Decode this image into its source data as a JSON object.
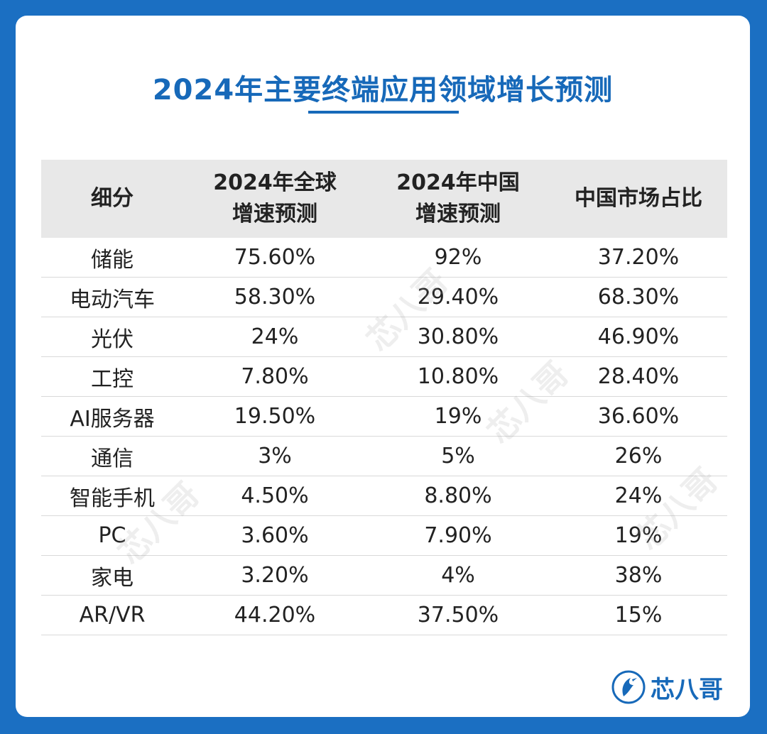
{
  "title": "2024年主要终端应用领域增长预测",
  "table": {
    "headers": [
      [
        "细分"
      ],
      [
        "2024年全球",
        "增速预测"
      ],
      [
        "2024年中国",
        "增速预测"
      ],
      [
        "中国市场占比"
      ]
    ],
    "rows": [
      [
        "储能",
        "75.60%",
        "92%",
        "37.20%"
      ],
      [
        "电动汽车",
        "58.30%",
        "29.40%",
        "68.30%"
      ],
      [
        "光伏",
        "24%",
        "30.80%",
        "46.90%"
      ],
      [
        "工控",
        "7.80%",
        "10.80%",
        "28.40%"
      ],
      [
        "AI服务器",
        "19.50%",
        "19%",
        "36.60%"
      ],
      [
        "通信",
        "3%",
        "5%",
        "26%"
      ],
      [
        "智能手机",
        "4.50%",
        "8.80%",
        "24%"
      ],
      [
        "PC",
        "3.60%",
        "7.90%",
        "19%"
      ],
      [
        "家电",
        "3.20%",
        "4%",
        "38%"
      ],
      [
        "AR/VR",
        "44.20%",
        "37.50%",
        "15%"
      ]
    ]
  },
  "watermark": "芯八哥",
  "logo": {
    "text": "芯八哥",
    "icon": "bird-icon"
  },
  "colors": {
    "background": "#1b6fc2",
    "accent": "#1769b9",
    "header_bg": "#e8e8e8"
  }
}
